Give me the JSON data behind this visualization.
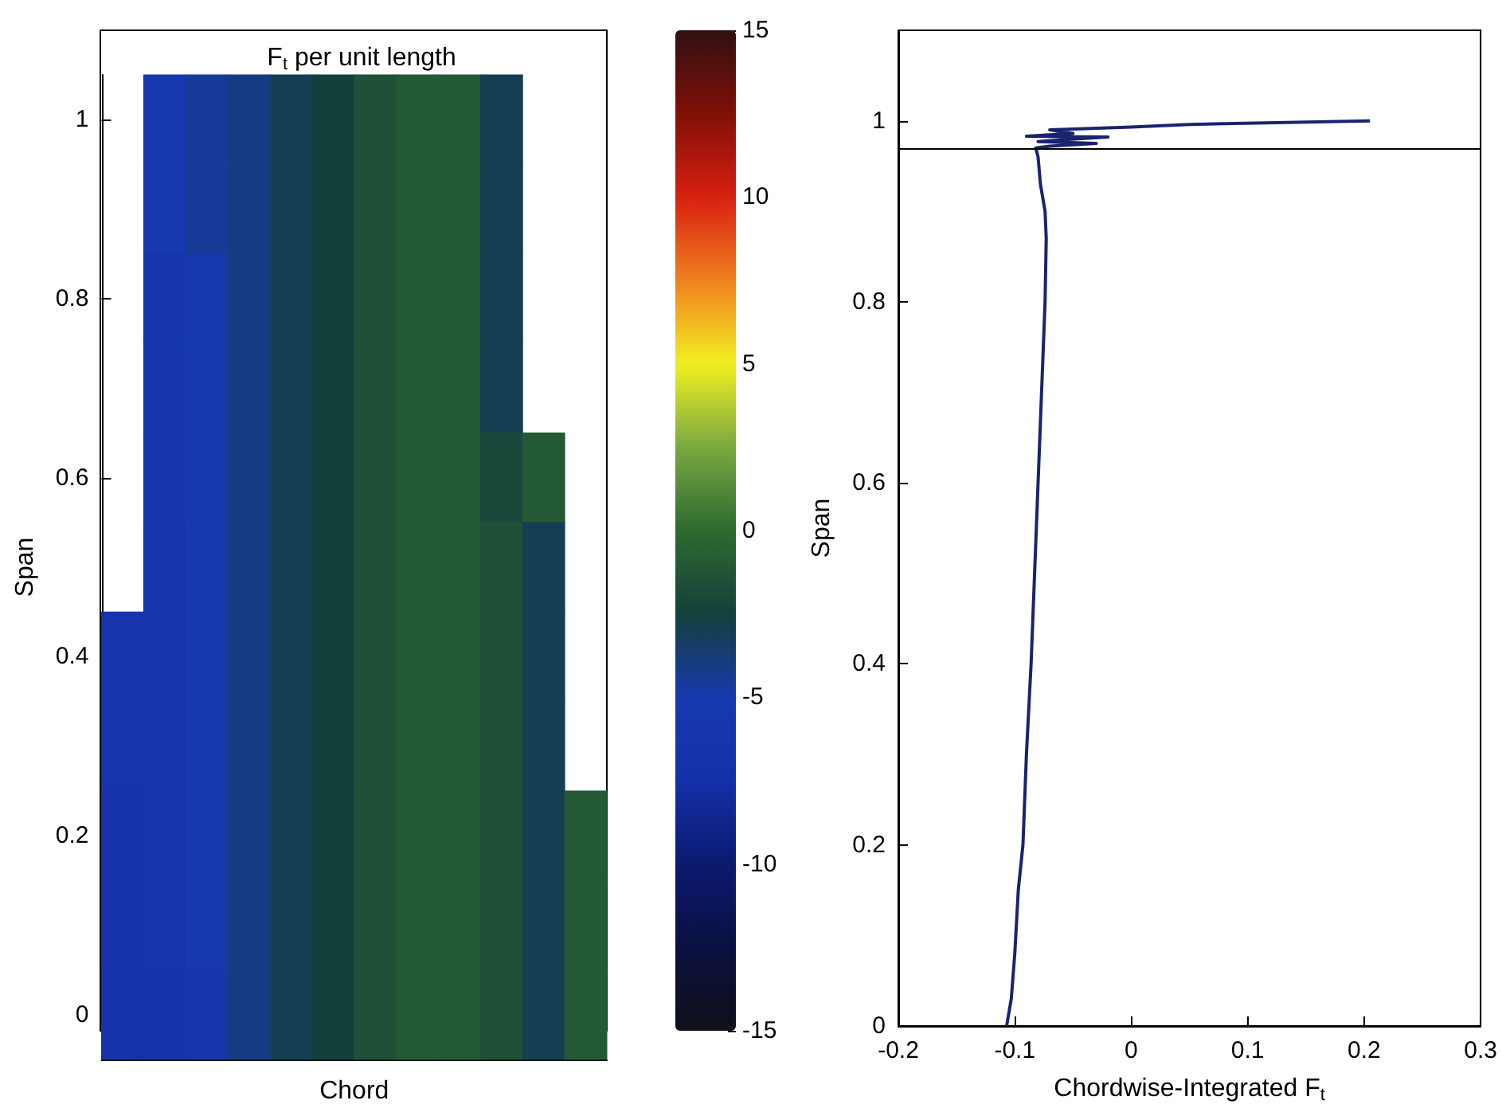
{
  "chart_data": [
    {
      "type": "heatmap",
      "title": "F$_{t}$ per unit length",
      "xlabel": "Chord",
      "ylabel": "Span",
      "categories": [
        null,
        null,
        null,
        null,
        null,
        null,
        null,
        null,
        null,
        null,
        null,
        null
      ],
      "y_categories": [
        "1",
        null,
        "0.8",
        null,
        "0.6",
        null,
        "0.4",
        null,
        "0.2",
        null,
        "0"
      ],
      "cells": [
        [
          null,
          -5,
          -4.5,
          -4,
          -3,
          -2.5,
          -1.5,
          -1,
          -1,
          -3,
          null,
          null
        ],
        [
          null,
          -5,
          -4.5,
          -4,
          -3,
          -2.5,
          -1.5,
          -1,
          -1,
          -3,
          null,
          null
        ],
        [
          null,
          -5.5,
          -5,
          -4,
          -3,
          -2.5,
          -1.5,
          -1,
          -1,
          -3,
          null,
          null
        ],
        [
          null,
          -5.5,
          -5,
          -4,
          -3,
          -2.5,
          -1.5,
          -1,
          -1,
          -3,
          null,
          null
        ],
        [
          null,
          -5.5,
          -5,
          -4,
          -3,
          -2.5,
          -1.5,
          -1,
          -1,
          -2,
          -1,
          null
        ],
        [
          null,
          -6,
          -5,
          -4,
          -3,
          -2.5,
          -1.5,
          -1,
          -1,
          -1.5,
          -3,
          null
        ],
        [
          -6,
          -6,
          -5,
          -4,
          -3,
          -2.5,
          -1.5,
          -1,
          -1,
          -1.5,
          -3,
          null
        ],
        [
          -6,
          -6,
          -5,
          -4,
          -3,
          -2.5,
          -1.5,
          -1,
          -1,
          -1.5,
          -3,
          null
        ],
        [
          -6.5,
          -6,
          -5,
          -4,
          -3,
          -2.5,
          -1.5,
          -1,
          -1,
          -1.5,
          -3,
          -1
        ],
        [
          -6.5,
          -6,
          -5,
          -4,
          -3,
          -2.5,
          -1.5,
          -1,
          -1,
          -1.5,
          -3,
          -1
        ],
        [
          -7,
          -6.5,
          -5.5,
          -4,
          -3,
          -2.5,
          -1.5,
          -1,
          -1,
          -1.5,
          -3,
          -1
        ]
      ],
      "clim": [
        -15,
        15
      ],
      "cticks": [
        -15,
        -10,
        -5,
        0,
        5,
        10,
        15
      ],
      "tick_labels": "y"
    },
    {
      "type": "line",
      "xlabel": "Chordwise-Integrated F$_{t}$",
      "ylabel": "Span",
      "series": [
        {
          "color": "#1a2370",
          "x": [
            -0.107,
            -0.103,
            -0.1,
            -0.097,
            -0.093,
            -0.09,
            -0.086,
            -0.083,
            -0.08,
            -0.077,
            -0.074,
            -0.073,
            -0.074,
            -0.078,
            -0.08,
            -0.082,
            -0.07,
            -0.03,
            -0.08,
            -0.06,
            -0.02,
            -0.09,
            -0.05,
            -0.07,
            0.0,
            0.05,
            0.205
          ],
          "values": [
            0,
            0.03,
            0.08,
            0.15,
            0.2,
            0.3,
            0.4,
            0.5,
            0.6,
            0.7,
            0.8,
            0.87,
            0.9,
            0.93,
            0.96,
            0.97,
            0.972,
            0.975,
            0.977,
            0.979,
            0.982,
            0.983,
            0.986,
            0.99,
            0.993,
            0.996,
            1.0
          ]
        }
      ],
      "xlim": [
        -0.2,
        0.3
      ],
      "xticks": [
        -0.2,
        -0.1,
        0,
        0.1,
        0.2,
        0.3
      ],
      "ylim": [
        0,
        1.1
      ],
      "yticks": [
        0,
        0.2,
        0.4,
        0.6,
        0.8,
        1
      ],
      "ref_lines": [
        {
          "axis": "y",
          "value": 0.972,
          "color": "#000000"
        }
      ],
      "marker": "none",
      "line_style": "solid"
    }
  ]
}
